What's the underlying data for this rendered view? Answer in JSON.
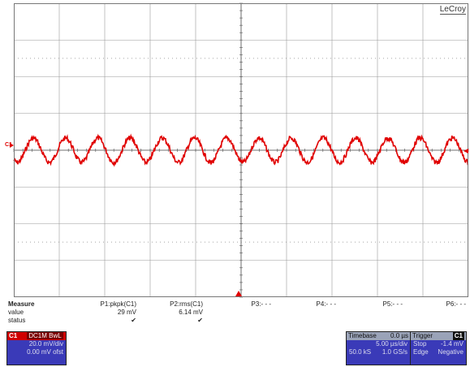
{
  "brand": "LeCroy",
  "channel_marker": "C1",
  "colors": {
    "trace": "#e00000",
    "grid": "#9a9a9a",
    "panel": "#3a3ab8"
  },
  "measure": {
    "title": "Measure",
    "row_labels": [
      "value",
      "status"
    ],
    "params": [
      {
        "name": "P1:pkpk(C1)",
        "value": "29 mV",
        "status": "✔"
      },
      {
        "name": "P2:rms(C1)",
        "value": "6.14 mV",
        "status": "✔"
      },
      {
        "name": "P3:- - -",
        "value": "",
        "status": ""
      },
      {
        "name": "P4:- - -",
        "value": "",
        "status": ""
      },
      {
        "name": "P5:- - -",
        "value": "",
        "status": ""
      },
      {
        "name": "P6:- - -",
        "value": "",
        "status": ""
      }
    ]
  },
  "channel1": {
    "label": "C1",
    "coupling": "DC1M BwL",
    "vdiv": "20.0 mV/div",
    "offset": "0.00 mV ofst"
  },
  "timebase": {
    "label": "Timebase",
    "delay": "0.0 µs",
    "tdiv": "5.00 µs/div",
    "samples": "50.0 kS",
    "rate": "1.0 GS/s"
  },
  "trigger": {
    "label": "Trigger",
    "source": "C1",
    "mode": "Stop",
    "level": "-1.4 mV",
    "type": "Edge",
    "slope": "Negative"
  }
}
